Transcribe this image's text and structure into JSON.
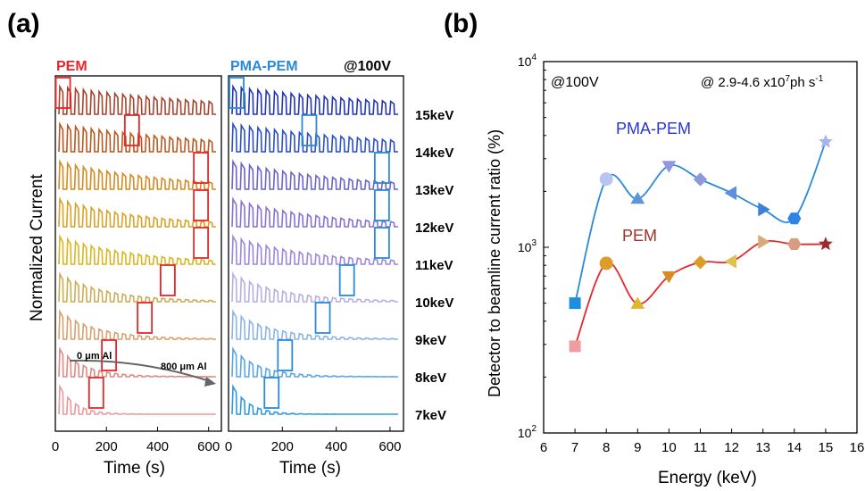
{
  "panel_a": {
    "label": "(a)",
    "left_title": "PEM",
    "right_title": "PMA-PEM",
    "voltage": "@100V",
    "ylabel": "Normalized Current",
    "xlabel": "Time (s)",
    "annotation_start": "0 μm Al",
    "annotation_end": "800 μm Al",
    "colors": {
      "pem_box": "#e8262b",
      "pma_box": "#2a8ad8",
      "pem_title": "#e8262b",
      "pma_title": "#2a8ad8"
    }
  },
  "panel_b": {
    "label": "(b)",
    "top_left": "@100V",
    "top_right_prefix": "@ 2.9-4.6 x10",
    "top_right_sup1": "7",
    "top_right_mid": "ph s",
    "top_right_sup2": "-1",
    "label_pma": "PMA-PEM",
    "label_pem": "PEM",
    "colors": {
      "pma_label": "#2a35d8",
      "pem_label": "#a0302a",
      "pma_line": "#2a8ad8",
      "pem_line": "#e8262b"
    }
  },
  "chart_data": [
    {
      "type": "line",
      "name_ref": "panel_a_left",
      "xlabel": "Time (s)",
      "ylabel": "Normalized Current",
      "xlim": [
        0,
        650
      ],
      "xticks": [
        0,
        200,
        400,
        600
      ],
      "energies": [
        "15keV",
        "14keV",
        "13keV",
        "12keV",
        "11keV",
        "10keV",
        "9keV",
        "8keV",
        "7keV"
      ],
      "marked_time": [
        30,
        300,
        570,
        570,
        570,
        440,
        350,
        210,
        160
      ],
      "trace_colors": [
        "#a6432c",
        "#b8581f",
        "#d48a22",
        "#d8a226",
        "#d6b622",
        "#c9ae56",
        "#d7a070",
        "#da8c84",
        "#e89a9a"
      ]
    },
    {
      "type": "line",
      "name_ref": "panel_a_right",
      "xlabel": "Time (s)",
      "xlim": [
        0,
        650
      ],
      "xticks": [
        0,
        200,
        400,
        600
      ],
      "energies": [
        "15keV",
        "14keV",
        "13keV",
        "12keV",
        "11keV",
        "10keV",
        "9keV",
        "8keV",
        "7keV"
      ],
      "marked_time": [
        30,
        300,
        570,
        570,
        570,
        440,
        350,
        210,
        160
      ],
      "trace_colors": [
        "#2235b8",
        "#2a4fc6",
        "#6c63cc",
        "#8773d2",
        "#9c88da",
        "#b6b0e2",
        "#8ab4e4",
        "#5aa6e2",
        "#2f9ae0"
      ]
    },
    {
      "type": "line",
      "name_ref": "panel_b",
      "xlabel": "Energy (keV)",
      "ylabel": "Detector to beamline current ratio (%)",
      "xlim": [
        6,
        16
      ],
      "xticks": [
        6,
        7,
        8,
        9,
        10,
        11,
        12,
        13,
        14,
        15,
        16
      ],
      "yscale": "log",
      "ylim": [
        100,
        10000
      ],
      "yticks": [
        {
          "value": 100,
          "base": "10",
          "exp": "2"
        },
        {
          "value": 1000,
          "base": "10",
          "exp": "3"
        },
        {
          "value": 10000,
          "base": "10",
          "exp": "4"
        }
      ],
      "x": [
        7,
        8,
        9,
        10,
        11,
        12,
        13,
        14,
        15
      ],
      "series": [
        {
          "values": [
            500,
            2330,
            1820,
            2750,
            2320,
            1960,
            1600,
            1430,
            3700
          ],
          "markers": [
            "square",
            "circle",
            "triangle-up",
            "triangle-down",
            "diamond",
            "triangle-left",
            "triangle-right",
            "hexagon",
            "star"
          ],
          "marker_colors": [
            "#1e8ee0",
            "#b9c5ee",
            "#5a96d8",
            "#8f97e2",
            "#8c9ad8",
            "#5b8fe0",
            "#3f7fd6",
            "#2c84e6",
            "#a8b2ee"
          ]
        },
        {
          "values": [
            293,
            820,
            495,
            700,
            830,
            840,
            1070,
            1040,
            1040
          ],
          "markers": [
            "square",
            "circle",
            "triangle-up",
            "triangle-down",
            "diamond",
            "triangle-left",
            "triangle-right",
            "hexagon",
            "star"
          ],
          "marker_colors": [
            "#ee9ea0",
            "#dc9e2a",
            "#dcb82e",
            "#d88c26",
            "#dc9c26",
            "#ddc24e",
            "#d9aa78",
            "#d79c82",
            "#9e2a2a"
          ]
        }
      ]
    }
  ]
}
